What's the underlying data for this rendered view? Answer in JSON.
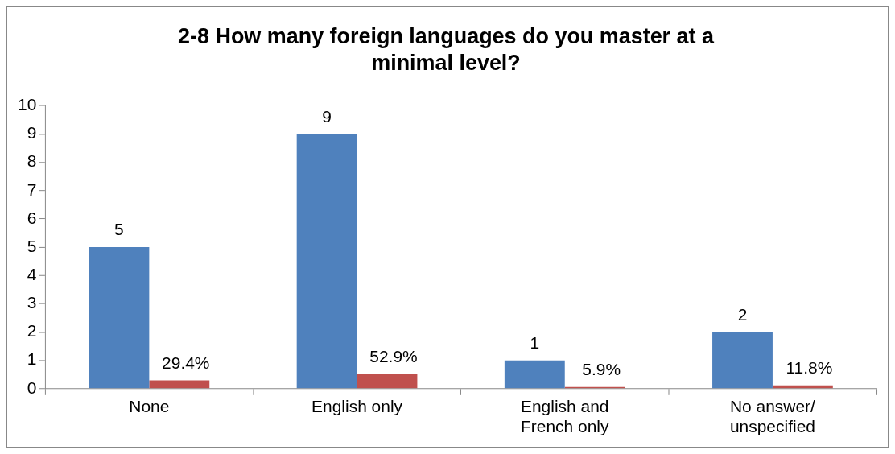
{
  "chart_data": {
    "type": "bar",
    "title": "2-8 How many foreign languages do you master at a minimal level?",
    "categories": [
      "None",
      "English only",
      "English and French only",
      "No answer/ unspecified"
    ],
    "series": [
      {
        "color": "#4f81bd",
        "values": [
          5,
          9,
          1,
          2
        ],
        "value_labels": [
          "5",
          "9",
          "1",
          "2"
        ]
      },
      {
        "color": "#c0504d",
        "values": [
          0.294,
          0.529,
          0.059,
          0.118
        ],
        "value_labels": [
          "29.4%",
          "52.9%",
          "5.9%",
          "11.8%"
        ]
      }
    ],
    "ylim": [
      0,
      10
    ],
    "yticks": [
      0,
      1,
      2,
      3,
      4,
      5,
      6,
      7,
      8,
      9,
      10
    ],
    "grid": false,
    "legend": false
  }
}
